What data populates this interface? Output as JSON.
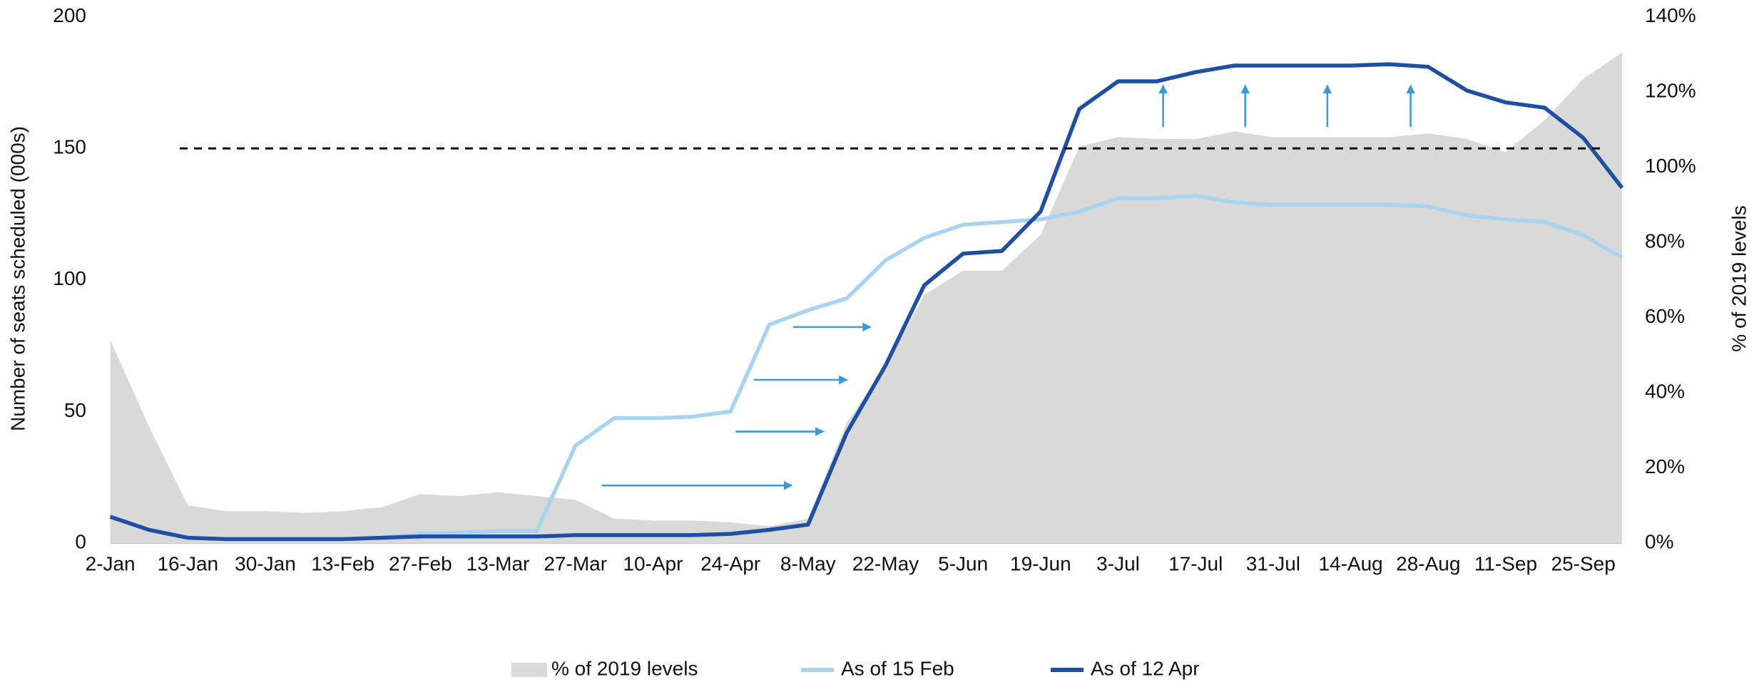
{
  "chart_data": {
    "type": "line",
    "y_label": "Number of seats scheduled (000s)",
    "y2_label": "% of 2019 levels",
    "categories": [
      "2-Jan",
      null,
      "16-Jan",
      null,
      "30-Jan",
      null,
      "13-Feb",
      null,
      "27-Feb",
      null,
      "13-Mar",
      null,
      "27-Mar",
      null,
      "10-Apr",
      null,
      "24-Apr",
      null,
      "8-May",
      null,
      "22-May",
      null,
      "5-Jun",
      null,
      "19-Jun",
      null,
      "3-Jul",
      null,
      "17-Jul",
      null,
      "31-Jul",
      null,
      "14-Aug",
      null,
      "28-Aug",
      null,
      "11-Sep",
      null,
      "25-Sep",
      null
    ],
    "ylim": [
      0,
      200
    ],
    "yticks": [
      0,
      50,
      100,
      150,
      200
    ],
    "y2lim": [
      0,
      140
    ],
    "y2ticks": [
      {
        "value": 0,
        "label": "0%"
      },
      {
        "value": 20,
        "label": "20%"
      },
      {
        "value": 40,
        "label": "40%"
      },
      {
        "value": 60,
        "label": "60%"
      },
      {
        "value": 80,
        "label": "80%"
      },
      {
        "value": 100,
        "label": "100%"
      },
      {
        "value": 120,
        "label": "120%"
      },
      {
        "value": 140,
        "label": "140%"
      }
    ],
    "reference_line": 150,
    "series": [
      {
        "name": "% of 2019 levels",
        "color": "#d9d9d9",
        "axis": "y2",
        "fill": true,
        "values": [
          54,
          31,
          10,
          8.5,
          8.5,
          8,
          8.5,
          9.5,
          13,
          12.5,
          13.5,
          12.5,
          11.5,
          6.5,
          6,
          6,
          5.5,
          4.5,
          6.5,
          32,
          47,
          66,
          72.5,
          72.5,
          82,
          105.5,
          108,
          107.5,
          107.5,
          109.5,
          108,
          108,
          108,
          108,
          109,
          107.5,
          104,
          112.5,
          123.5,
          130.5
        ]
      },
      {
        "name": "As of 15 Feb",
        "color": "#a9d4f0",
        "values": [
          10,
          5,
          2,
          1.5,
          1.5,
          1.5,
          1.5,
          2,
          3.5,
          4,
          4.5,
          4.5,
          37,
          47.5,
          47.5,
          48,
          50,
          83,
          88.5,
          93,
          107.5,
          116,
          121,
          122,
          123,
          126,
          131,
          131,
          132,
          129.5,
          128.5,
          128.5,
          128.5,
          128.5,
          128,
          124.5,
          123,
          122,
          117,
          108.5
        ]
      },
      {
        "name": "As of 12 Apr",
        "color": "#1f4fa3",
        "values": [
          10,
          5,
          2,
          1.5,
          1.5,
          1.5,
          1.5,
          2,
          2.5,
          2.5,
          2.5,
          2.5,
          3,
          3,
          3,
          3,
          3.5,
          5,
          7,
          42,
          67.5,
          98,
          110,
          111,
          126,
          165,
          175.5,
          175.5,
          179,
          181.5,
          181.5,
          181.5,
          181.5,
          182,
          181,
          172,
          167.5,
          165.5,
          154,
          135
        ]
      }
    ]
  }
}
